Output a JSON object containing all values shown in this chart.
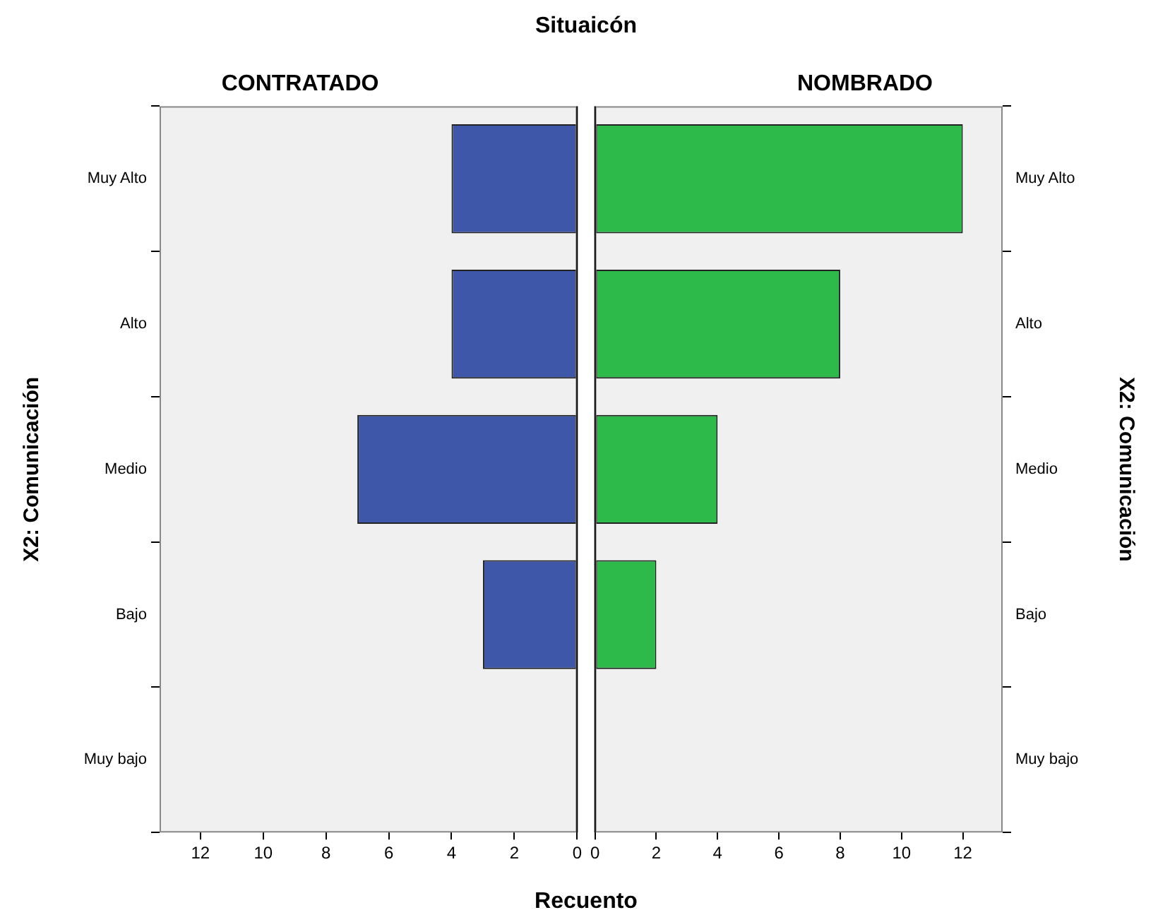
{
  "chart_data": [
    {
      "type": "bar",
      "orientation": "horizontal",
      "title": "CONTRATADO",
      "annotations": [
        "Situaicón"
      ],
      "xlabel": "Recuento",
      "ylabel": "X2: Comunicación",
      "categories": [
        "Muy Alto",
        "Alto",
        "Medio",
        "Bajo",
        "Muy bajo"
      ],
      "series": [
        {
          "color": "#3f57a9",
          "values": [
            4,
            4,
            7,
            3,
            null
          ]
        }
      ],
      "xlim": [
        13.3,
        0
      ],
      "xticks": [
        12,
        10,
        8,
        6,
        4,
        2,
        0
      ],
      "grid": false,
      "legend": false
    },
    {
      "type": "bar",
      "orientation": "horizontal",
      "title": "NOMBRADO",
      "ylabel": "X2: Comunicación",
      "categories": [
        "Muy Alto",
        "Alto",
        "Medio",
        "Bajo",
        "Muy bajo"
      ],
      "series": [
        {
          "color": "#2eb94b",
          "values": [
            12,
            8,
            4,
            2,
            null
          ]
        }
      ],
      "xlim": [
        0,
        13.3
      ],
      "xticks": [
        0,
        2,
        4,
        6,
        8,
        10,
        12
      ],
      "grid": false,
      "legend": false
    }
  ]
}
